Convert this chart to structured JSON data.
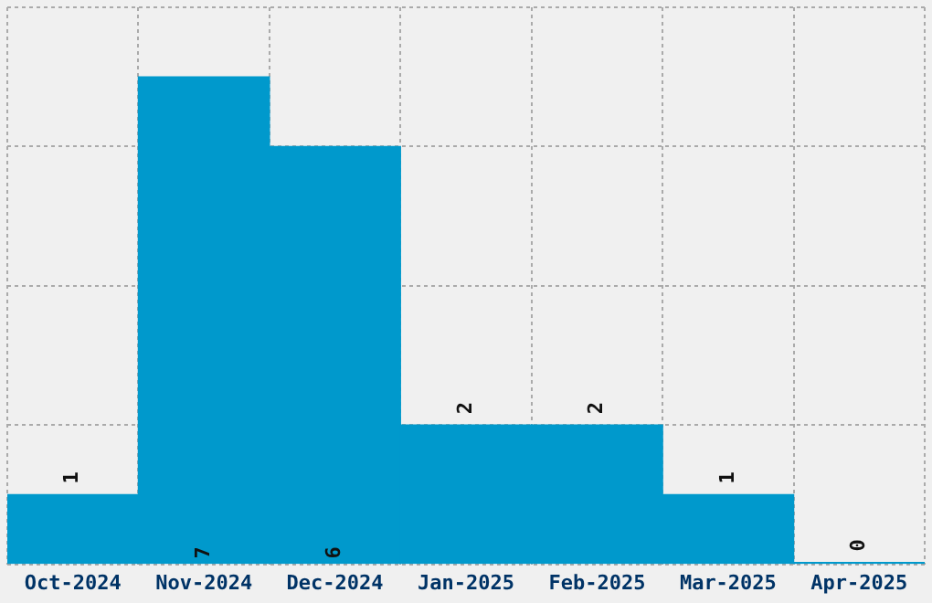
{
  "chart_data": {
    "type": "bar",
    "categories": [
      "Oct-2024",
      "Nov-2024",
      "Dec-2024",
      "Jan-2025",
      "Feb-2025",
      "Mar-2025",
      "Apr-2025"
    ],
    "values": [
      1,
      7,
      6,
      2,
      2,
      1,
      0
    ],
    "color": "#0099cc",
    "ylim": [
      0,
      8
    ],
    "yticks": [
      {
        "value": 0,
        "label": null
      },
      {
        "value": 2,
        "label": null
      },
      {
        "value": 4,
        "label": null
      },
      {
        "value": 6,
        "label": null
      },
      {
        "value": 8,
        "label": null
      }
    ],
    "grid": true,
    "tick_labels": "x",
    "data_labels": true
  }
}
